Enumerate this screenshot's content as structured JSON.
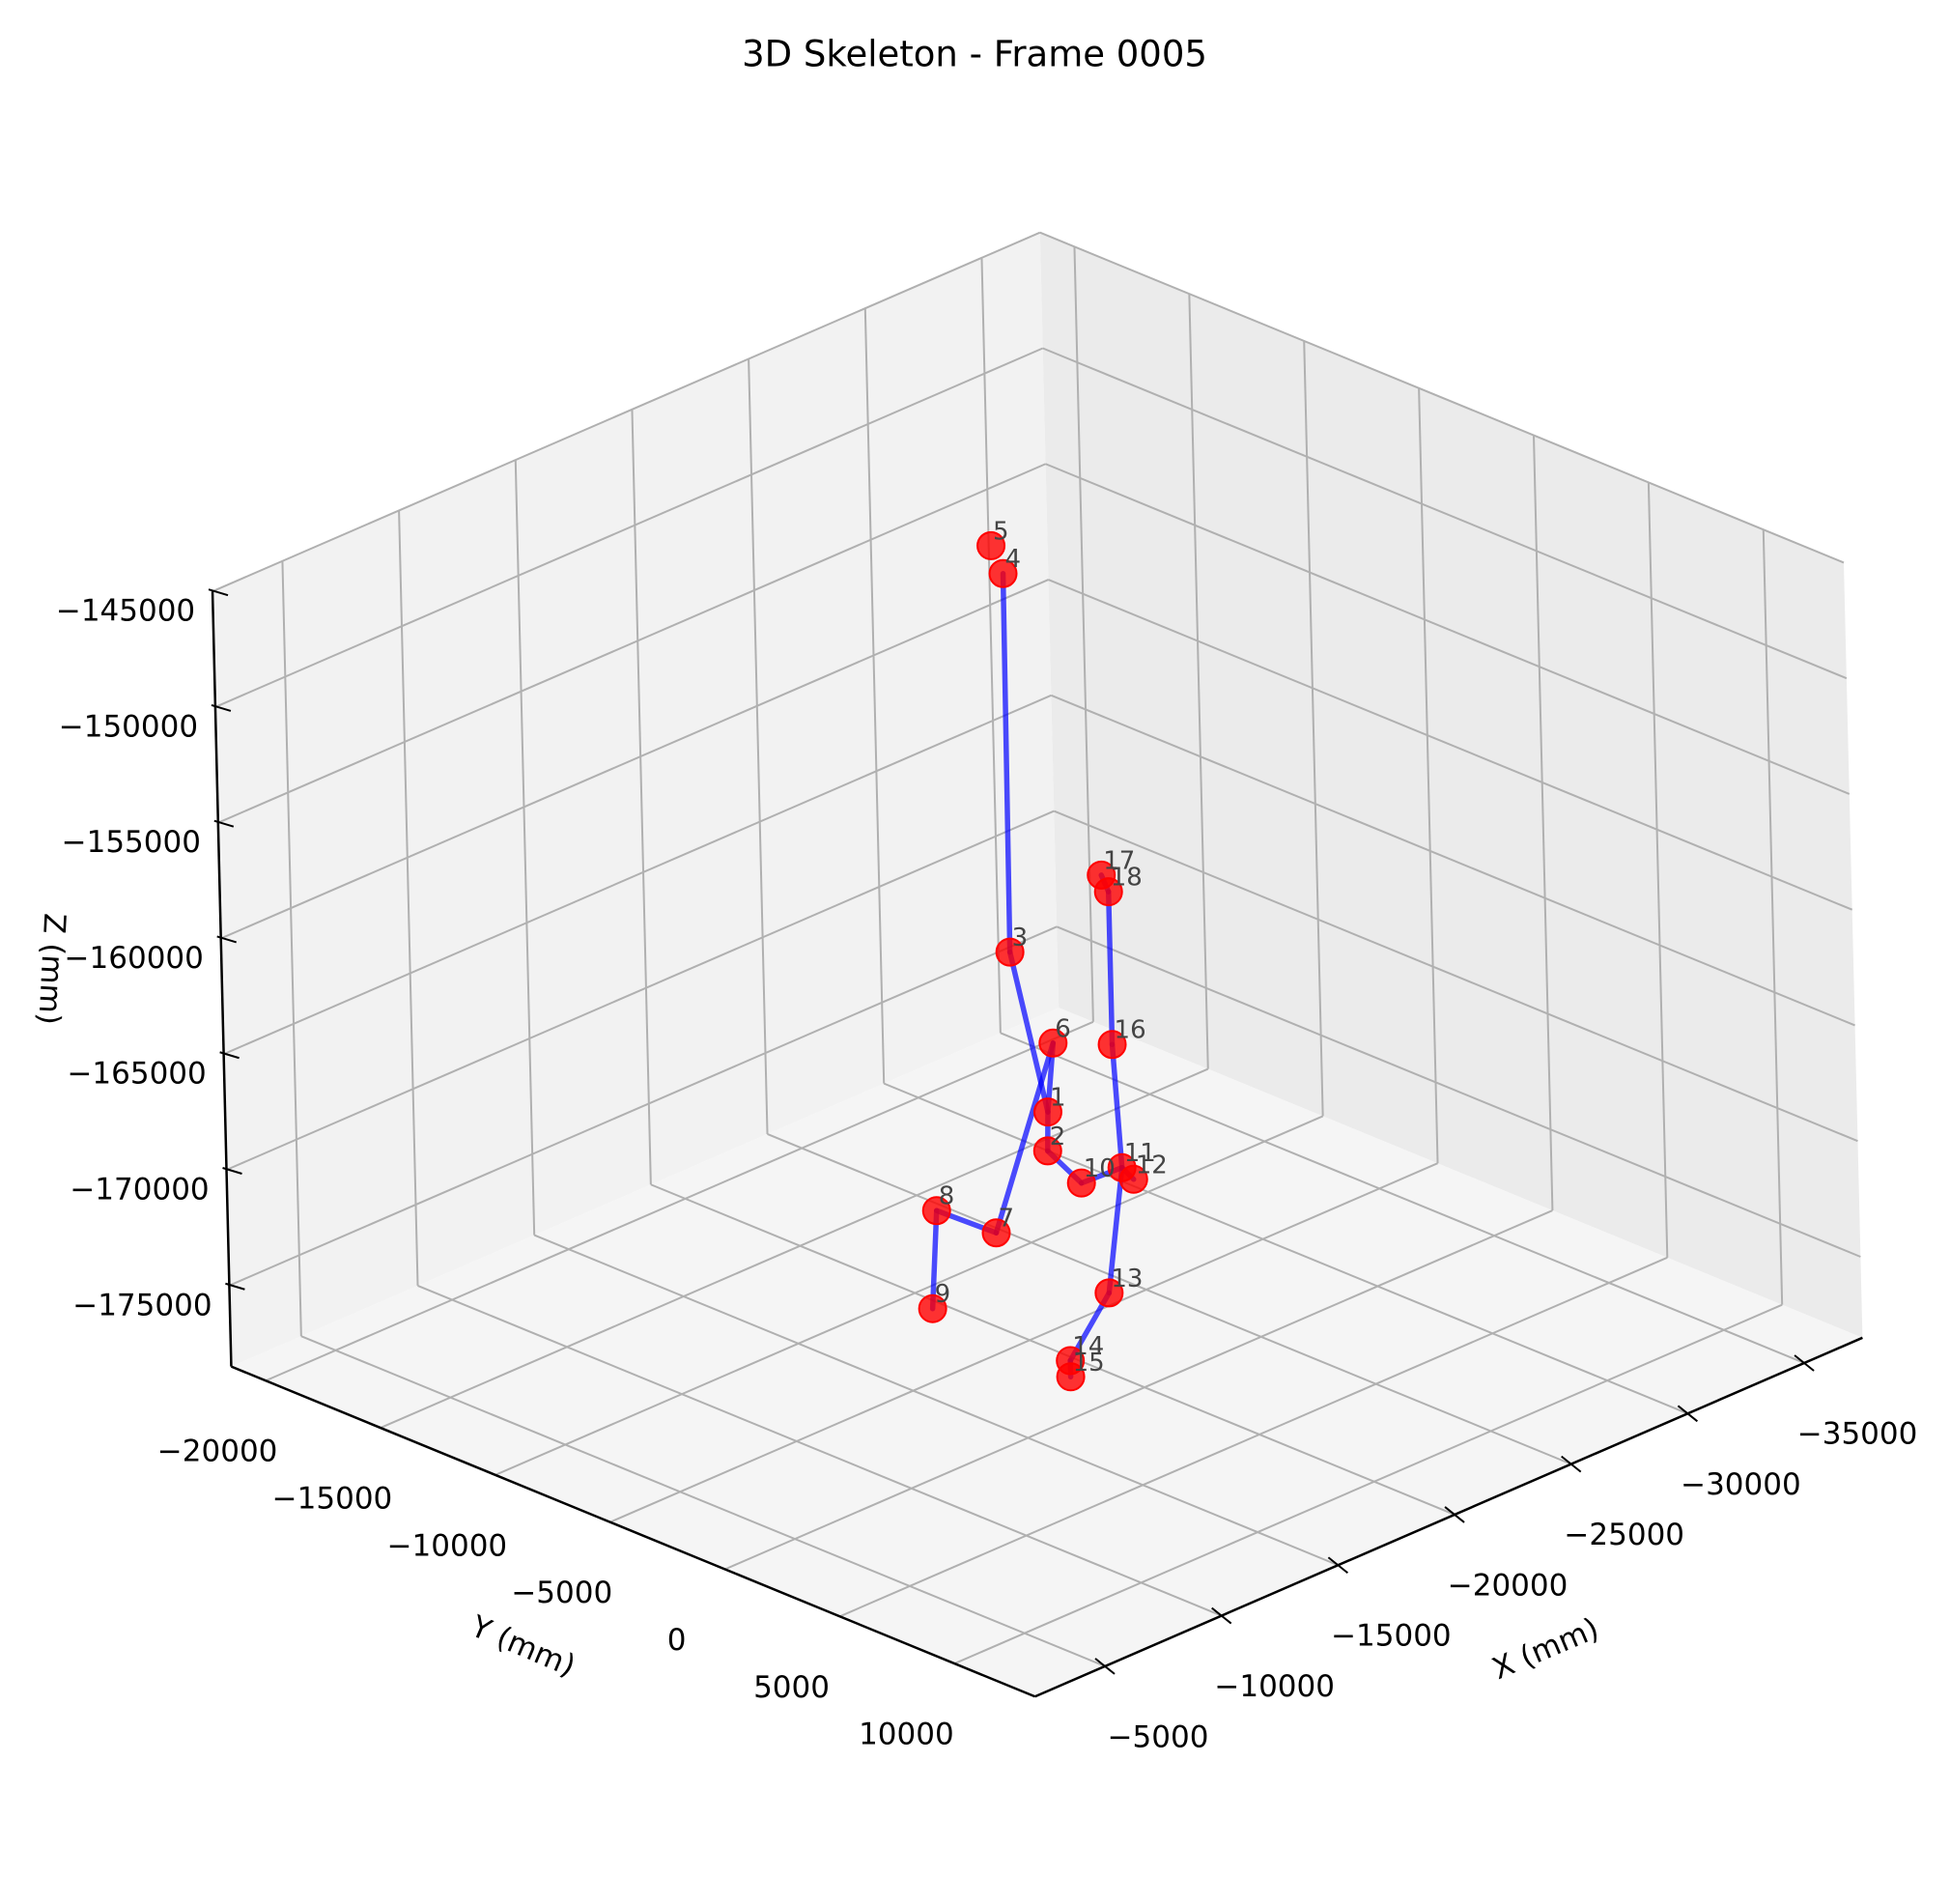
{
  "chart_data": {
    "type": "scatter3d",
    "title": "3D Skeleton - Frame 0005",
    "xlabel": "X (mm)",
    "ylabel": "Y (mm)",
    "zlabel": "Z (mm)",
    "xlim": [
      -37500,
      -2000
    ],
    "ylim": [
      -21500,
      13500
    ],
    "zlim": [
      -178500,
      -145000
    ],
    "xticks": [
      {
        "value": -35000,
        "label": "−35000"
      },
      {
        "value": -30000,
        "label": "−30000"
      },
      {
        "value": -25000,
        "label": "−25000"
      },
      {
        "value": -20000,
        "label": "−20000"
      },
      {
        "value": -15000,
        "label": "−15000"
      },
      {
        "value": -10000,
        "label": "−10000"
      },
      {
        "value": -5000,
        "label": "−5000"
      }
    ],
    "yticks": [
      {
        "value": -20000,
        "label": "−20000"
      },
      {
        "value": -15000,
        "label": "−15000"
      },
      {
        "value": -10000,
        "label": "−10000"
      },
      {
        "value": -5000,
        "label": "−5000"
      },
      0,
      5000,
      10000
    ],
    "zticks": [
      {
        "value": -175000,
        "label": "−175000"
      },
      {
        "value": -170000,
        "label": "−170000"
      },
      {
        "value": -165000,
        "label": "−165000"
      },
      {
        "value": -160000,
        "label": "−160000"
      },
      {
        "value": -155000,
        "label": "−155000"
      },
      {
        "value": -150000,
        "label": "−150000"
      },
      {
        "value": -145000,
        "label": "−145000"
      }
    ],
    "grid": true,
    "point_color": "#ff0000",
    "line_color": "#0000ff",
    "labels": [
      "1",
      "2",
      "3",
      "4",
      "5",
      "6",
      "7",
      "8",
      "9",
      "10",
      "11",
      "12",
      "13",
      "14",
      "15",
      "16",
      "17",
      "18"
    ],
    "x": [
      -19750,
      -19750,
      -19750,
      -19750,
      -19750,
      -19750,
      -19750,
      -19750,
      -16200,
      -19750,
      -19750,
      -19750,
      -19750,
      -16200,
      -16200,
      -19750,
      -19750,
      -19750
    ],
    "y": [
      -3700,
      -3750,
      -5200,
      -5100,
      -5600,
      -3400,
      -6100,
      -8700,
      -5300,
      -2300,
      -500,
      0,
      -1200,
      700,
      700,
      -800,
      -1100,
      -800
    ],
    "z": [
      -168000,
      -169700,
      -161700,
      -145300,
      -144300,
      -164900,
      -174200,
      -174300,
      -175600,
      -170500,
      -169100,
      -169400,
      -174800,
      -175400,
      -176100,
      -163900,
      -156700,
      -157300
    ],
    "edges": [
      [
        4,
        3
      ],
      [
        3,
        1
      ],
      [
        1,
        2
      ],
      [
        6,
        1
      ],
      [
        6,
        7
      ],
      [
        7,
        8
      ],
      [
        8,
        9
      ],
      [
        2,
        10
      ],
      [
        10,
        11
      ],
      [
        11,
        12
      ],
      [
        11,
        13
      ],
      [
        13,
        14
      ],
      [
        14,
        15
      ],
      [
        11,
        16
      ],
      [
        16,
        18
      ],
      [
        18,
        17
      ]
    ]
  }
}
